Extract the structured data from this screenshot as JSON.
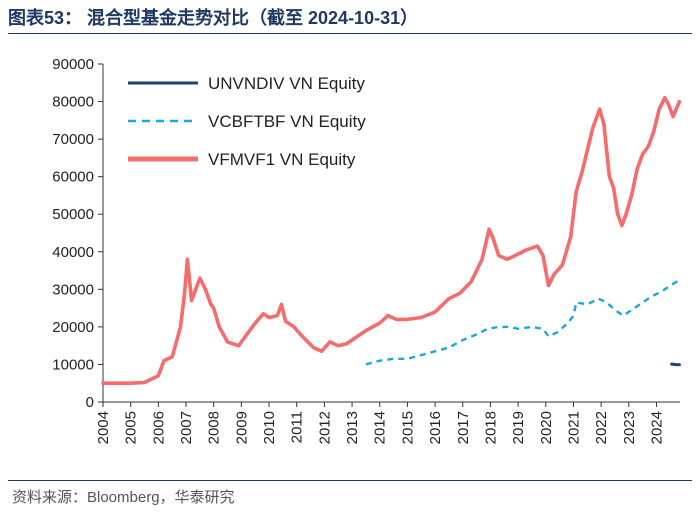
{
  "figure": {
    "title": "图表53：  混合型基金走势对比（截至 2024-10-31）",
    "source": "资料来源：Bloomberg，华泰研究"
  },
  "colors": {
    "series1": "#1f3f7a",
    "series2": "#1aa7e0",
    "series3": "#f66b6b",
    "rule": "#1f3864"
  },
  "chart_data": {
    "type": "line",
    "title": "混合型基金走势对比（截至 2024-10-31）",
    "xlabel": "",
    "ylabel": "",
    "xlim": [
      2004,
      2024.85
    ],
    "ylim": [
      0,
      90000
    ],
    "yticks": [
      "0",
      "10000",
      "20000",
      "30000",
      "40000",
      "50000",
      "60000",
      "70000",
      "80000",
      "90000"
    ],
    "xticks": [
      "2004",
      "2005",
      "2006",
      "2007",
      "2008",
      "2009",
      "2010",
      "2011",
      "2012",
      "2013",
      "2014",
      "2015",
      "2016",
      "2017",
      "2018",
      "2019",
      "2020",
      "2021",
      "2022",
      "2023",
      "2024"
    ],
    "legend_position": "top-left",
    "series": [
      {
        "name": "UNVNDIV VN Equity",
        "style": "solid",
        "points": [
          [
            2024.55,
            10100
          ],
          [
            2024.65,
            10000
          ],
          [
            2024.75,
            9900
          ],
          [
            2024.83,
            9950
          ]
        ]
      },
      {
        "name": "VCBFTBF VN Equity",
        "style": "dashed",
        "points": [
          [
            2013.5,
            10000
          ],
          [
            2014.0,
            11000
          ],
          [
            2014.5,
            11500
          ],
          [
            2015.0,
            11500
          ],
          [
            2015.5,
            12500
          ],
          [
            2016.0,
            13500
          ],
          [
            2016.5,
            14500
          ],
          [
            2017.0,
            16500
          ],
          [
            2017.5,
            18000
          ],
          [
            2017.9,
            19500
          ],
          [
            2018.3,
            20000
          ],
          [
            2018.7,
            20000
          ],
          [
            2019.0,
            19500
          ],
          [
            2019.5,
            20000
          ],
          [
            2019.9,
            19500
          ],
          [
            2020.1,
            17500
          ],
          [
            2020.4,
            18500
          ],
          [
            2020.8,
            21000
          ],
          [
            2021.0,
            23000
          ],
          [
            2021.1,
            26500
          ],
          [
            2021.5,
            26000
          ],
          [
            2021.9,
            27500
          ],
          [
            2022.2,
            26500
          ],
          [
            2022.5,
            24500
          ],
          [
            2022.8,
            23000
          ],
          [
            2023.0,
            24000
          ],
          [
            2023.4,
            26000
          ],
          [
            2023.8,
            28000
          ],
          [
            2024.2,
            29500
          ],
          [
            2024.5,
            31000
          ],
          [
            2024.83,
            32500
          ]
        ]
      },
      {
        "name": "VFMVF1 VN Equity",
        "style": "solid",
        "points": [
          [
            2004.0,
            5000
          ],
          [
            2004.5,
            5000
          ],
          [
            2005.0,
            5000
          ],
          [
            2005.5,
            5200
          ],
          [
            2006.0,
            7000
          ],
          [
            2006.2,
            11000
          ],
          [
            2006.5,
            12000
          ],
          [
            2006.8,
            20000
          ],
          [
            2006.95,
            29000
          ],
          [
            2007.05,
            38000
          ],
          [
            2007.2,
            27000
          ],
          [
            2007.5,
            33000
          ],
          [
            2007.7,
            30000
          ],
          [
            2007.9,
            26000
          ],
          [
            2008.0,
            25000
          ],
          [
            2008.2,
            20000
          ],
          [
            2008.5,
            16000
          ],
          [
            2008.9,
            15000
          ],
          [
            2009.1,
            17000
          ],
          [
            2009.5,
            21000
          ],
          [
            2009.8,
            23500
          ],
          [
            2010.0,
            22500
          ],
          [
            2010.3,
            23000
          ],
          [
            2010.45,
            26000
          ],
          [
            2010.6,
            21500
          ],
          [
            2010.9,
            20000
          ],
          [
            2011.2,
            17500
          ],
          [
            2011.6,
            14500
          ],
          [
            2011.9,
            13500
          ],
          [
            2012.2,
            16000
          ],
          [
            2012.5,
            15000
          ],
          [
            2012.8,
            15500
          ],
          [
            2013.0,
            16500
          ],
          [
            2013.5,
            19000
          ],
          [
            2014.0,
            21000
          ],
          [
            2014.3,
            23000
          ],
          [
            2014.6,
            22000
          ],
          [
            2015.0,
            22000
          ],
          [
            2015.5,
            22500
          ],
          [
            2016.0,
            24000
          ],
          [
            2016.5,
            27500
          ],
          [
            2016.9,
            29000
          ],
          [
            2017.3,
            32000
          ],
          [
            2017.7,
            38000
          ],
          [
            2017.95,
            46000
          ],
          [
            2018.1,
            43500
          ],
          [
            2018.3,
            39000
          ],
          [
            2018.6,
            38000
          ],
          [
            2018.9,
            39000
          ],
          [
            2019.3,
            40500
          ],
          [
            2019.7,
            41500
          ],
          [
            2019.9,
            39000
          ],
          [
            2020.1,
            31000
          ],
          [
            2020.3,
            34000
          ],
          [
            2020.6,
            36500
          ],
          [
            2020.9,
            44000
          ],
          [
            2021.1,
            56000
          ],
          [
            2021.3,
            61000
          ],
          [
            2021.5,
            67000
          ],
          [
            2021.7,
            73000
          ],
          [
            2021.95,
            78000
          ],
          [
            2022.1,
            74000
          ],
          [
            2022.3,
            60000
          ],
          [
            2022.45,
            57000
          ],
          [
            2022.6,
            50000
          ],
          [
            2022.75,
            47000
          ],
          [
            2022.9,
            50000
          ],
          [
            2023.1,
            55000
          ],
          [
            2023.3,
            62000
          ],
          [
            2023.5,
            66000
          ],
          [
            2023.7,
            68000
          ],
          [
            2023.9,
            72000
          ],
          [
            2024.1,
            78000
          ],
          [
            2024.3,
            81000
          ],
          [
            2024.45,
            79000
          ],
          [
            2024.6,
            76000
          ],
          [
            2024.83,
            80000
          ]
        ]
      }
    ]
  }
}
